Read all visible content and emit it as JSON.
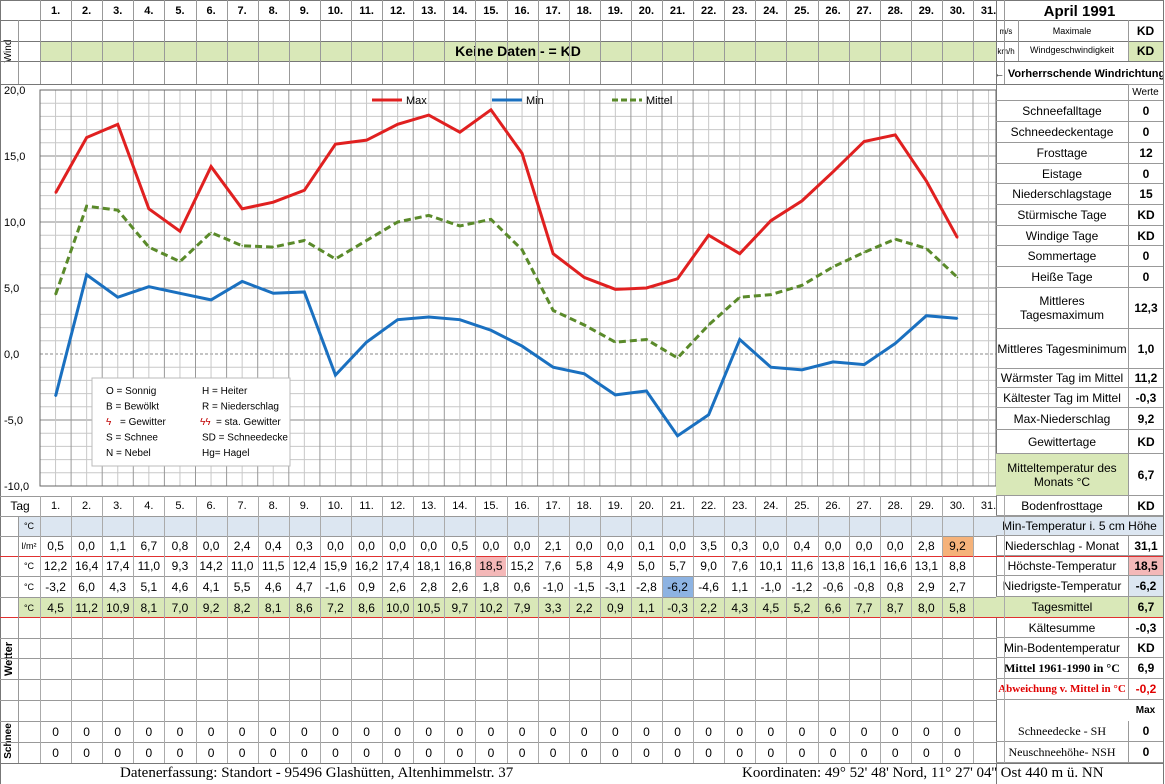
{
  "header": {
    "month_title": "April 1991",
    "wind_label": "Wind",
    "unit_ms": "m/s",
    "unit_kmh": "km/h",
    "max_wind_label": "Maximale Windgeschwindigkeit",
    "kd1": "KD",
    "kd2": "KD",
    "no_data": "Keine Daten -  = KD",
    "wind_dir": "← Vorherrschende Windrichtung",
    "werte": "Werte",
    "days": [
      "1.",
      "2.",
      "3.",
      "4.",
      "5.",
      "6.",
      "7.",
      "8.",
      "9.",
      "10.",
      "11.",
      "12.",
      "13.",
      "14.",
      "15.",
      "16.",
      "17.",
      "18.",
      "19.",
      "20.",
      "21.",
      "22.",
      "23.",
      "24.",
      "25.",
      "26.",
      "27.",
      "28.",
      "29.",
      "30.",
      "31."
    ]
  },
  "chart_data": {
    "type": "line",
    "x": [
      1,
      2,
      3,
      4,
      5,
      6,
      7,
      8,
      9,
      10,
      11,
      12,
      13,
      14,
      15,
      16,
      17,
      18,
      19,
      20,
      21,
      22,
      23,
      24,
      25,
      26,
      27,
      28,
      29,
      30
    ],
    "ylim": [
      -10,
      20
    ],
    "yticks": [
      "20,0",
      "15,0",
      "10,0",
      "5,0",
      "0,0",
      "-5,0",
      "-10,0"
    ],
    "series": [
      {
        "name": "Max",
        "color": "#e02020",
        "values": [
          12.2,
          16.4,
          17.4,
          11.0,
          9.3,
          14.2,
          11.0,
          11.5,
          12.4,
          15.9,
          16.2,
          17.4,
          18.1,
          16.8,
          18.5,
          15.2,
          7.6,
          5.8,
          4.9,
          5.0,
          5.7,
          9.0,
          7.6,
          10.1,
          11.6,
          13.8,
          16.1,
          16.6,
          13.1,
          8.8
        ]
      },
      {
        "name": "Min",
        "color": "#1a70c0",
        "values": [
          -3.2,
          6.0,
          4.3,
          5.1,
          4.6,
          4.1,
          5.5,
          4.6,
          4.7,
          -1.6,
          0.9,
          2.6,
          2.8,
          2.6,
          1.8,
          0.6,
          -1.0,
          -1.5,
          -3.1,
          -2.8,
          -6.2,
          -4.6,
          1.1,
          -1.0,
          -1.2,
          -0.6,
          -0.8,
          0.8,
          2.9,
          2.7
        ]
      },
      {
        "name": "Mittel",
        "color": "#5a8a2a",
        "values": [
          4.5,
          11.2,
          10.9,
          8.1,
          7.0,
          9.2,
          8.2,
          8.1,
          8.6,
          7.2,
          8.6,
          10.0,
          10.5,
          9.7,
          10.2,
          7.9,
          3.3,
          2.2,
          0.9,
          1.1,
          -0.3,
          2.2,
          4.3,
          4.5,
          5.2,
          6.6,
          7.7,
          8.7,
          8.0,
          5.8
        ]
      }
    ],
    "legend_box": [
      [
        "O = Sonnig",
        "H = Heiter"
      ],
      [
        "B = Bewölkt",
        "R = Niederschlag"
      ],
      [
        "= Gewitter",
        "= sta. Gewitter"
      ],
      [
        "S = Schnee",
        "SD = Schneedecke"
      ],
      [
        "N = Nebel",
        "Hg= Hagel"
      ]
    ]
  },
  "stats": [
    {
      "label": "Schneefalltage",
      "value": "0"
    },
    {
      "label": "Schneedeckentage",
      "value": "0"
    },
    {
      "label": "Frosttage",
      "value": "12"
    },
    {
      "label": "Eistage",
      "value": "0"
    },
    {
      "label": "Niederschlagstage",
      "value": "15"
    },
    {
      "label": "Stürmische Tage",
      "value": "KD"
    },
    {
      "label": "Windige Tage",
      "value": "KD"
    },
    {
      "label": "Sommertage",
      "value": "0"
    },
    {
      "label": "Heiße Tage",
      "value": "0"
    },
    {
      "label": "Mittleres Tagesmaximum",
      "value": "12,3"
    },
    {
      "label": "Mittleres Tagesminimum",
      "value": "1,0"
    },
    {
      "label": "Wärmster Tag im Mittel",
      "value": "11,2"
    },
    {
      "label": "Kältester Tag im Mittel",
      "value": "-0,3"
    },
    {
      "label": "Max-Niederschlag",
      "value": "9,2"
    },
    {
      "label": "Gewittertage",
      "value": "KD"
    },
    {
      "label": "Mitteltemperatur des Monats °C",
      "value": "6,7"
    }
  ],
  "table": {
    "tag_label": "Tag",
    "rows": [
      {
        "unit": "°C",
        "label": "Min-Temperatur i. 5 cm Höhe",
        "rv": "",
        "vals": []
      },
      {
        "unit": "l/m²",
        "label": "Niederschlag - Monat",
        "rv": "31,1",
        "vals": [
          "0,5",
          "0,0",
          "1,1",
          "6,7",
          "0,8",
          "0,0",
          "2,4",
          "0,4",
          "0,3",
          "0,0",
          "0,0",
          "0,0",
          "0,0",
          "0,5",
          "0,0",
          "0,0",
          "2,1",
          "0,0",
          "0,0",
          "0,1",
          "0,0",
          "3,5",
          "0,3",
          "0,0",
          "0,4",
          "0,0",
          "0,0",
          "0,0",
          "2,8",
          "9,2"
        ]
      },
      {
        "unit": "°C",
        "label": "Höchste-Temperatur",
        "rv": "18,5",
        "vals": [
          "12,2",
          "16,4",
          "17,4",
          "11,0",
          "9,3",
          "14,2",
          "11,0",
          "11,5",
          "12,4",
          "15,9",
          "16,2",
          "17,4",
          "18,1",
          "16,8",
          "18,5",
          "15,2",
          "7,6",
          "5,8",
          "4,9",
          "5,0",
          "5,7",
          "9,0",
          "7,6",
          "10,1",
          "11,6",
          "13,8",
          "16,1",
          "16,6",
          "13,1",
          "8,8"
        ]
      },
      {
        "unit": "°C",
        "label": "Niedrigste-Temperatur",
        "rv": "-6,2",
        "vals": [
          "-3,2",
          "6,0",
          "4,3",
          "5,1",
          "4,6",
          "4,1",
          "5,5",
          "4,6",
          "4,7",
          "-1,6",
          "0,9",
          "2,6",
          "2,8",
          "2,6",
          "1,8",
          "0,6",
          "-1,0",
          "-1,5",
          "-3,1",
          "-2,8",
          "-6,2",
          "-4,6",
          "1,1",
          "-1,0",
          "-1,2",
          "-0,6",
          "-0,8",
          "0,8",
          "2,9",
          "2,7"
        ]
      },
      {
        "unit": "°C",
        "label": "Tagesmittel",
        "rv": "6,7",
        "vals": [
          "4,5",
          "11,2",
          "10,9",
          "8,1",
          "7,0",
          "9,2",
          "8,2",
          "8,1",
          "8,6",
          "7,2",
          "8,6",
          "10,0",
          "10,5",
          "9,7",
          "10,2",
          "7,9",
          "3,3",
          "2,2",
          "0,9",
          "1,1",
          "-0,3",
          "2,2",
          "4,3",
          "4,5",
          "5,2",
          "6,6",
          "7,7",
          "8,7",
          "8,0",
          "5,8"
        ]
      }
    ],
    "extra": [
      {
        "label": "Kältesumme",
        "value": "-0,3"
      },
      {
        "label": "Min-Bodentemperatur",
        "value": "KD"
      },
      {
        "label": "Mittel 1961-1990 in °C",
        "value": "6,9"
      },
      {
        "label": "Abweichung v. Mittel in °C",
        "value": "-0,2"
      }
    ],
    "max_label": "Max",
    "wetter_label": "Wetter",
    "schnee_label": "Schnee",
    "snow_rows": [
      {
        "label": "Schneedecke -   SH",
        "value": "0"
      },
      {
        "label": "Neuschneehöhe- NSH",
        "value": "0"
      }
    ],
    "zero": "0",
    "bodenfrost_label": "Bodenfrosttage",
    "bodenfrost_value": "KD"
  },
  "footer": {
    "left": "Datenerfassung:  Standort -   95496  Glashütten, Altenhimmelstr. 37",
    "right": "Koordinaten:  49° 52' 48' Nord,  11° 27' 04'' Ost   440 m ü. NN"
  }
}
